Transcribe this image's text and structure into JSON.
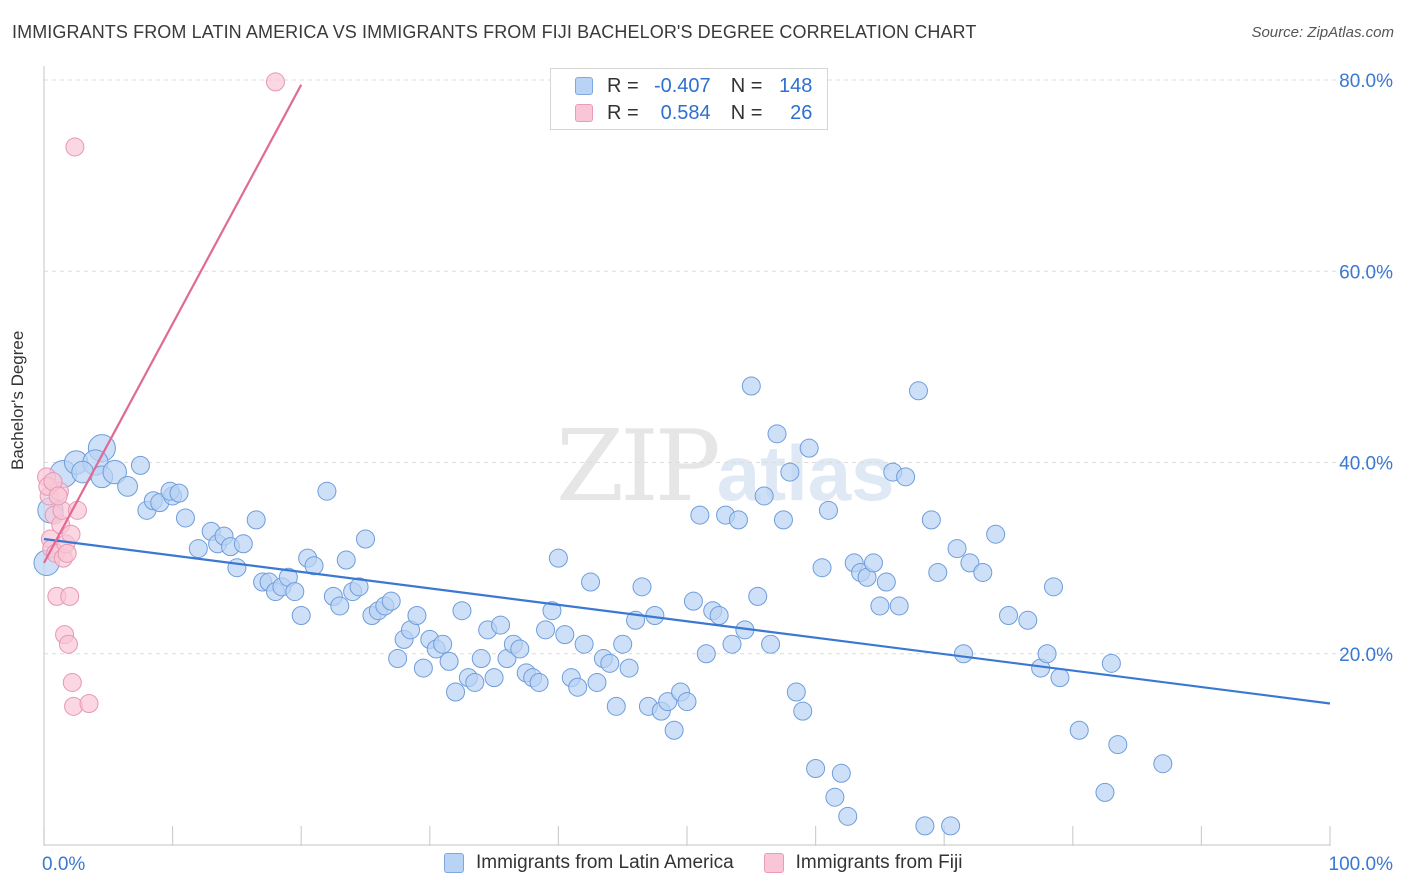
{
  "chart_data": {
    "type": "scatter",
    "title": "IMMIGRANTS FROM LATIN AMERICA VS IMMIGRANTS FROM FIJI BACHELOR'S DEGREE CORRELATION CHART",
    "source": "Source: ZipAtlas.com",
    "xlabel": "",
    "ylabel": "Bachelor's Degree",
    "xlim": [
      0,
      100
    ],
    "ylim": [
      0,
      80
    ],
    "x_tick_labels": {
      "left": "0.0%",
      "right": "100.0%"
    },
    "y_ticks": [
      20,
      40,
      60,
      80
    ],
    "y_tick_labels": [
      "20.0%",
      "40.0%",
      "60.0%",
      "80.0%"
    ],
    "grid": "horizontal dashed",
    "watermark": {
      "zip": "ZIP",
      "atlas": "atlas"
    },
    "colors": {
      "blue": "#3a78d2",
      "blue_fill": "#b9d3f4",
      "pink": "#e06a94",
      "pink_fill": "#f8c6d6"
    },
    "stats": [
      {
        "r_label": "R =",
        "r": "-0.407",
        "n_label": "N =",
        "n": "148"
      },
      {
        "r_label": "R =",
        "r": "0.584",
        "n_label": "N =",
        "n": "26"
      }
    ],
    "legend": [
      "Immigrants from Latin America",
      "Immigrants from Fiji"
    ],
    "series": [
      {
        "name": "Immigrants from Latin America",
        "trendline": {
          "x": [
            0,
            100
          ],
          "y": [
            32.0,
            14.8
          ]
        },
        "points": [
          [
            0.2,
            29.5,
            1.4
          ],
          [
            0.5,
            35.0,
            1.4
          ],
          [
            1.5,
            38.8,
            1.5
          ],
          [
            2.5,
            40.0,
            1.3
          ],
          [
            4.5,
            41.5,
            1.5
          ],
          [
            4.0,
            40.0,
            1.4
          ],
          [
            3.0,
            39.0,
            1.2
          ],
          [
            4.5,
            38.5,
            1.2
          ],
          [
            5.5,
            39.0,
            1.3
          ],
          [
            6.5,
            37.5,
            1.1
          ],
          [
            7.5,
            39.7,
            1.0
          ],
          [
            8.0,
            35.0,
            1.0
          ],
          [
            8.5,
            36.0,
            1.0
          ],
          [
            9.0,
            35.8,
            1.0
          ],
          [
            10.0,
            36.5,
            1.0
          ],
          [
            9.8,
            37.0,
            1.0
          ],
          [
            10.5,
            36.8,
            1.0
          ],
          [
            11.0,
            34.2,
            1.0
          ],
          [
            12.0,
            31.0,
            1.0
          ],
          [
            13.0,
            32.8,
            1.0
          ],
          [
            13.5,
            31.5,
            1.0
          ],
          [
            14.0,
            32.3,
            1.0
          ],
          [
            14.5,
            31.2,
            1.0
          ],
          [
            15.0,
            29.0,
            1.0
          ],
          [
            15.5,
            31.5,
            1.0
          ],
          [
            16.5,
            34.0,
            1.0
          ],
          [
            17.0,
            27.5,
            1.0
          ],
          [
            17.5,
            27.5,
            1.0
          ],
          [
            18.0,
            26.5,
            1.0
          ],
          [
            18.5,
            27.0,
            1.0
          ],
          [
            19.0,
            28.0,
            1.0
          ],
          [
            19.5,
            26.5,
            1.0
          ],
          [
            20.0,
            24.0,
            1.0
          ],
          [
            20.5,
            30.0,
            1.0
          ],
          [
            21.0,
            29.2,
            1.0
          ],
          [
            22.0,
            37.0,
            1.0
          ],
          [
            22.5,
            26.0,
            1.0
          ],
          [
            23.0,
            25.0,
            1.0
          ],
          [
            23.5,
            29.8,
            1.0
          ],
          [
            24.0,
            26.5,
            1.0
          ],
          [
            24.5,
            27.0,
            1.0
          ],
          [
            25.0,
            32.0,
            1.0
          ],
          [
            25.5,
            24.0,
            1.0
          ],
          [
            26.0,
            24.5,
            1.0
          ],
          [
            26.5,
            25.0,
            1.0
          ],
          [
            27.0,
            25.5,
            1.0
          ],
          [
            27.5,
            19.5,
            1.0
          ],
          [
            28.0,
            21.5,
            1.0
          ],
          [
            28.5,
            22.5,
            1.0
          ],
          [
            29.0,
            24.0,
            1.0
          ],
          [
            29.5,
            18.5,
            1.0
          ],
          [
            30.0,
            21.5,
            1.0
          ],
          [
            30.5,
            20.5,
            1.0
          ],
          [
            31.0,
            21.0,
            1.0
          ],
          [
            31.5,
            19.2,
            1.0
          ],
          [
            32.0,
            16.0,
            1.0
          ],
          [
            32.5,
            24.5,
            1.0
          ],
          [
            33.0,
            17.5,
            1.0
          ],
          [
            33.5,
            17.0,
            1.0
          ],
          [
            34.0,
            19.5,
            1.0
          ],
          [
            34.5,
            22.5,
            1.0
          ],
          [
            35.0,
            17.5,
            1.0
          ],
          [
            35.5,
            23.0,
            1.0
          ],
          [
            36.0,
            19.5,
            1.0
          ],
          [
            36.5,
            21.0,
            1.0
          ],
          [
            37.0,
            20.5,
            1.0
          ],
          [
            37.5,
            18.0,
            1.0
          ],
          [
            38.0,
            17.5,
            1.0
          ],
          [
            38.5,
            17.0,
            1.0
          ],
          [
            39.0,
            22.5,
            1.0
          ],
          [
            39.5,
            24.5,
            1.0
          ],
          [
            40.0,
            30.0,
            1.0
          ],
          [
            40.5,
            22.0,
            1.0
          ],
          [
            41.0,
            17.5,
            1.0
          ],
          [
            41.5,
            16.5,
            1.0
          ],
          [
            42.0,
            21.0,
            1.0
          ],
          [
            42.5,
            27.5,
            1.0
          ],
          [
            43.0,
            17.0,
            1.0
          ],
          [
            43.5,
            19.5,
            1.0
          ],
          [
            44.0,
            19.0,
            1.0
          ],
          [
            44.5,
            14.5,
            1.0
          ],
          [
            45.0,
            21.0,
            1.0
          ],
          [
            45.5,
            18.5,
            1.0
          ],
          [
            46.0,
            23.5,
            1.0
          ],
          [
            46.5,
            27.0,
            1.0
          ],
          [
            47.0,
            14.5,
            1.0
          ],
          [
            47.5,
            24.0,
            1.0
          ],
          [
            48.0,
            14.0,
            1.0
          ],
          [
            48.5,
            15.0,
            1.0
          ],
          [
            49.0,
            12.0,
            1.0
          ],
          [
            49.5,
            16.0,
            1.0
          ],
          [
            50.0,
            15.0,
            1.0
          ],
          [
            50.5,
            25.5,
            1.0
          ],
          [
            51.0,
            34.5,
            1.0
          ],
          [
            51.5,
            20.0,
            1.0
          ],
          [
            52.0,
            24.5,
            1.0
          ],
          [
            52.5,
            24.0,
            1.0
          ],
          [
            53.0,
            34.5,
            1.0
          ],
          [
            53.5,
            21.0,
            1.0
          ],
          [
            54.0,
            34.0,
            1.0
          ],
          [
            54.5,
            22.5,
            1.0
          ],
          [
            55.0,
            48.0,
            1.0
          ],
          [
            55.5,
            26.0,
            1.0
          ],
          [
            56.0,
            36.5,
            1.0
          ],
          [
            56.5,
            21.0,
            1.0
          ],
          [
            57.0,
            43.0,
            1.0
          ],
          [
            57.5,
            34.0,
            1.0
          ],
          [
            58.0,
            39.0,
            1.0
          ],
          [
            58.5,
            16.0,
            1.0
          ],
          [
            59.0,
            14.0,
            1.0
          ],
          [
            59.5,
            41.5,
            1.0
          ],
          [
            60.0,
            8.0,
            1.0
          ],
          [
            60.5,
            29.0,
            1.0
          ],
          [
            61.0,
            35.0,
            1.0
          ],
          [
            61.5,
            5.0,
            1.0
          ],
          [
            62.0,
            7.5,
            1.0
          ],
          [
            62.5,
            3.0,
            1.0
          ],
          [
            63.0,
            29.5,
            1.0
          ],
          [
            63.5,
            28.5,
            1.0
          ],
          [
            64.0,
            28.0,
            1.0
          ],
          [
            64.5,
            29.5,
            1.0
          ],
          [
            65.0,
            25.0,
            1.0
          ],
          [
            65.5,
            27.5,
            1.0
          ],
          [
            66.0,
            39.0,
            1.0
          ],
          [
            66.5,
            25.0,
            1.0
          ],
          [
            67.0,
            38.5,
            1.0
          ],
          [
            68.0,
            47.5,
            1.0
          ],
          [
            68.5,
            2.0,
            1.0
          ],
          [
            69.0,
            34.0,
            1.0
          ],
          [
            69.5,
            28.5,
            1.0
          ],
          [
            70.5,
            2.0,
            1.0
          ],
          [
            71.0,
            31.0,
            1.0
          ],
          [
            71.5,
            20.0,
            1.0
          ],
          [
            72.0,
            29.5,
            1.0
          ],
          [
            73.0,
            28.5,
            1.0
          ],
          [
            74.0,
            32.5,
            1.0
          ],
          [
            75.0,
            24.0,
            1.0
          ],
          [
            76.5,
            23.5,
            1.0
          ],
          [
            77.5,
            18.5,
            1.0
          ],
          [
            78.0,
            20.0,
            1.0
          ],
          [
            78.5,
            27.0,
            1.0
          ],
          [
            79.0,
            17.5,
            1.0
          ],
          [
            80.5,
            12.0,
            1.0
          ],
          [
            82.5,
            5.5,
            1.0
          ],
          [
            83.0,
            19.0,
            1.0
          ],
          [
            83.5,
            10.5,
            1.0
          ],
          [
            87.0,
            8.5,
            1.0
          ]
        ]
      },
      {
        "name": "Immigrants from Fiji",
        "trendline": {
          "x": [
            0,
            20
          ],
          "y": [
            29.5,
            79.5
          ]
        },
        "points": [
          [
            0.2,
            38.5,
            1.0
          ],
          [
            0.4,
            36.5,
            1.0
          ],
          [
            0.5,
            32.0,
            1.0
          ],
          [
            0.6,
            31.0,
            1.0
          ],
          [
            0.8,
            34.5,
            1.0
          ],
          [
            0.9,
            30.5,
            1.0
          ],
          [
            1.0,
            26.0,
            1.0
          ],
          [
            1.2,
            37.0,
            1.0
          ],
          [
            1.3,
            33.5,
            1.0
          ],
          [
            1.4,
            35.0,
            1.0
          ],
          [
            1.5,
            30.0,
            1.0
          ],
          [
            1.6,
            22.0,
            1.0
          ],
          [
            1.7,
            31.5,
            1.0
          ],
          [
            1.8,
            30.5,
            1.0
          ],
          [
            1.9,
            21.0,
            1.0
          ],
          [
            2.0,
            26.0,
            1.0
          ],
          [
            2.1,
            32.5,
            1.0
          ],
          [
            2.2,
            17.0,
            1.0
          ],
          [
            2.3,
            14.5,
            1.0
          ],
          [
            2.4,
            73.0,
            1.0
          ],
          [
            3.5,
            14.8,
            1.0
          ],
          [
            18.0,
            79.8,
            1.0
          ],
          [
            0.3,
            37.5,
            1.0
          ],
          [
            0.7,
            38.0,
            1.0
          ],
          [
            1.1,
            36.5,
            1.0
          ],
          [
            2.6,
            35.0,
            1.0
          ]
        ]
      }
    ]
  }
}
